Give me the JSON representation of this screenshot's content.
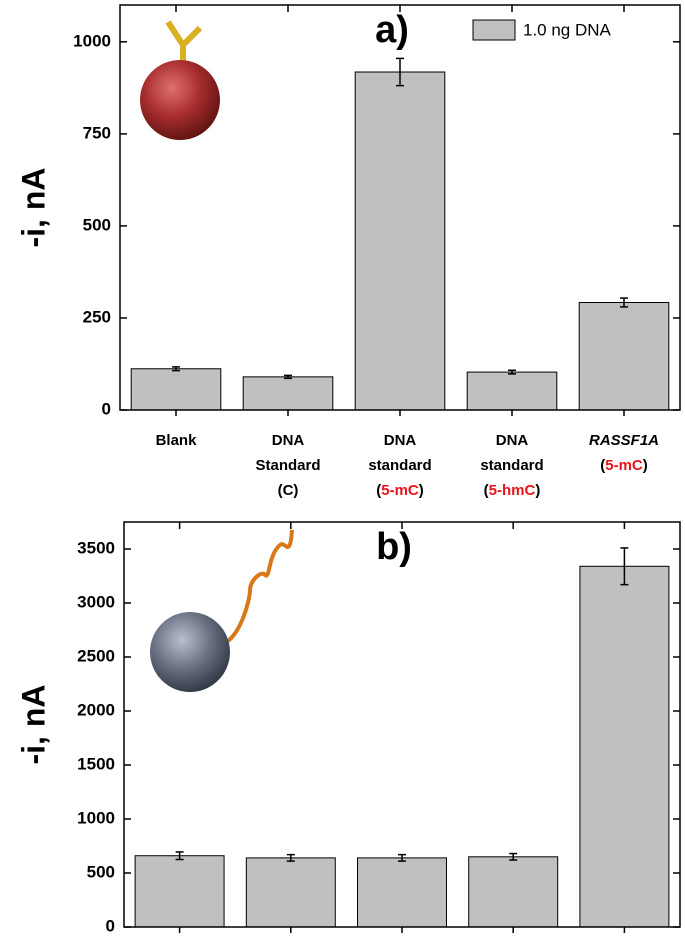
{
  "chart_data": [
    {
      "type": "bar",
      "annotation": "a)",
      "ylabel": "-i, nA",
      "categories": [
        [
          [
            "Blank"
          ]
        ],
        [
          [
            "DNA"
          ],
          [
            "Standard"
          ],
          [
            "(C)"
          ]
        ],
        [
          [
            "DNA"
          ],
          [
            "standard"
          ],
          [
            "(",
            {
              "text": "5-mC",
              "color": "#e8141a"
            },
            ")"
          ]
        ],
        [
          [
            "DNA"
          ],
          [
            "standard"
          ],
          [
            "(",
            {
              "text": "5-hmC",
              "color": "#e8141a"
            },
            ")"
          ]
        ],
        [
          [
            {
              "text": "RASSF1A",
              "style": "italic"
            }
          ],
          [
            "(",
            {
              "text": "5-mC",
              "color": "#e8141a"
            },
            ")"
          ]
        ]
      ],
      "series": [
        {
          "name": "1.0 ng DNA",
          "color": "#c0c0c0",
          "values": [
            112,
            90,
            918,
            103,
            292
          ],
          "errors": [
            5,
            4,
            37,
            5,
            12
          ]
        }
      ],
      "ylim": [
        0,
        1100
      ],
      "yticks": [
        0,
        250,
        500,
        750,
        1000
      ],
      "legend": "upper right"
    },
    {
      "type": "bar",
      "annotation": "b)",
      "ylabel": "-i, nA",
      "series": [
        {
          "color": "#c0c0c0",
          "values": [
            660,
            640,
            640,
            650,
            3340
          ],
          "errors": [
            35,
            30,
            30,
            30,
            170
          ]
        }
      ],
      "ylim": [
        0,
        3750
      ],
      "yticks": [
        0,
        500,
        1000,
        1500,
        2000,
        2500,
        3000,
        3500
      ]
    }
  ]
}
